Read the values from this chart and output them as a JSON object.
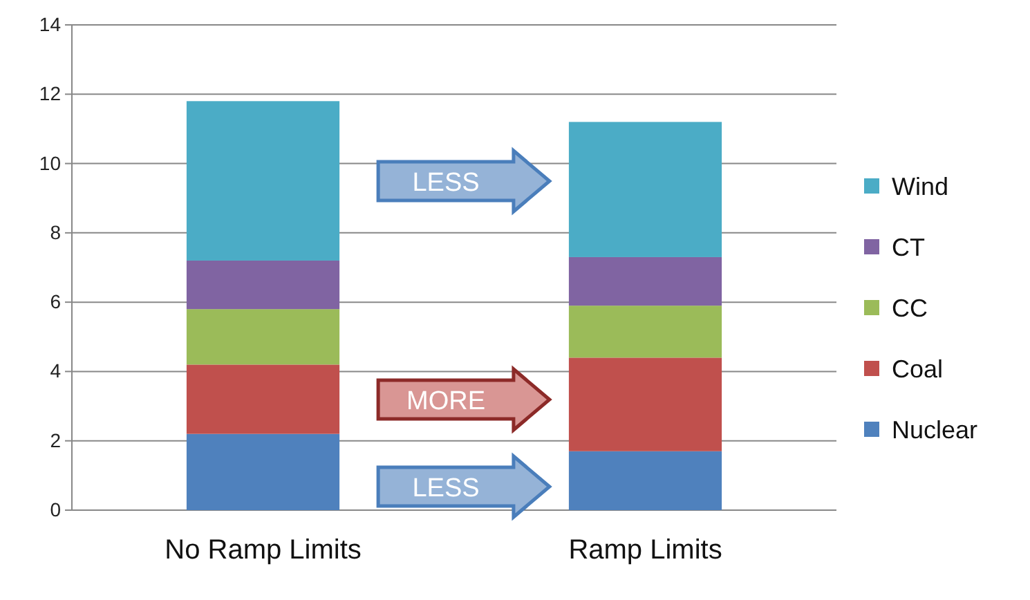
{
  "chart_data": {
    "type": "bar",
    "stacked": true,
    "categories": [
      "No Ramp Limits",
      "Ramp Limits"
    ],
    "series": [
      {
        "name": "Nuclear",
        "color": "#4f81bd",
        "values": [
          2.2,
          1.7
        ]
      },
      {
        "name": "Coal",
        "color": "#c0504d",
        "values": [
          2.0,
          2.7
        ]
      },
      {
        "name": "CC",
        "color": "#9bbb59",
        "values": [
          1.6,
          1.5
        ]
      },
      {
        "name": "CT",
        "color": "#8064a2",
        "values": [
          1.4,
          1.4
        ]
      },
      {
        "name": "Wind",
        "color": "#4bacc6",
        "values": [
          4.6,
          3.9
        ]
      }
    ],
    "ylim": [
      0,
      14
    ],
    "yticks": [
      0,
      2,
      4,
      6,
      8,
      10,
      12,
      14
    ],
    "grid": "y",
    "legend": "right",
    "annotations": [
      "LESS",
      "MORE",
      "LESS"
    ]
  }
}
